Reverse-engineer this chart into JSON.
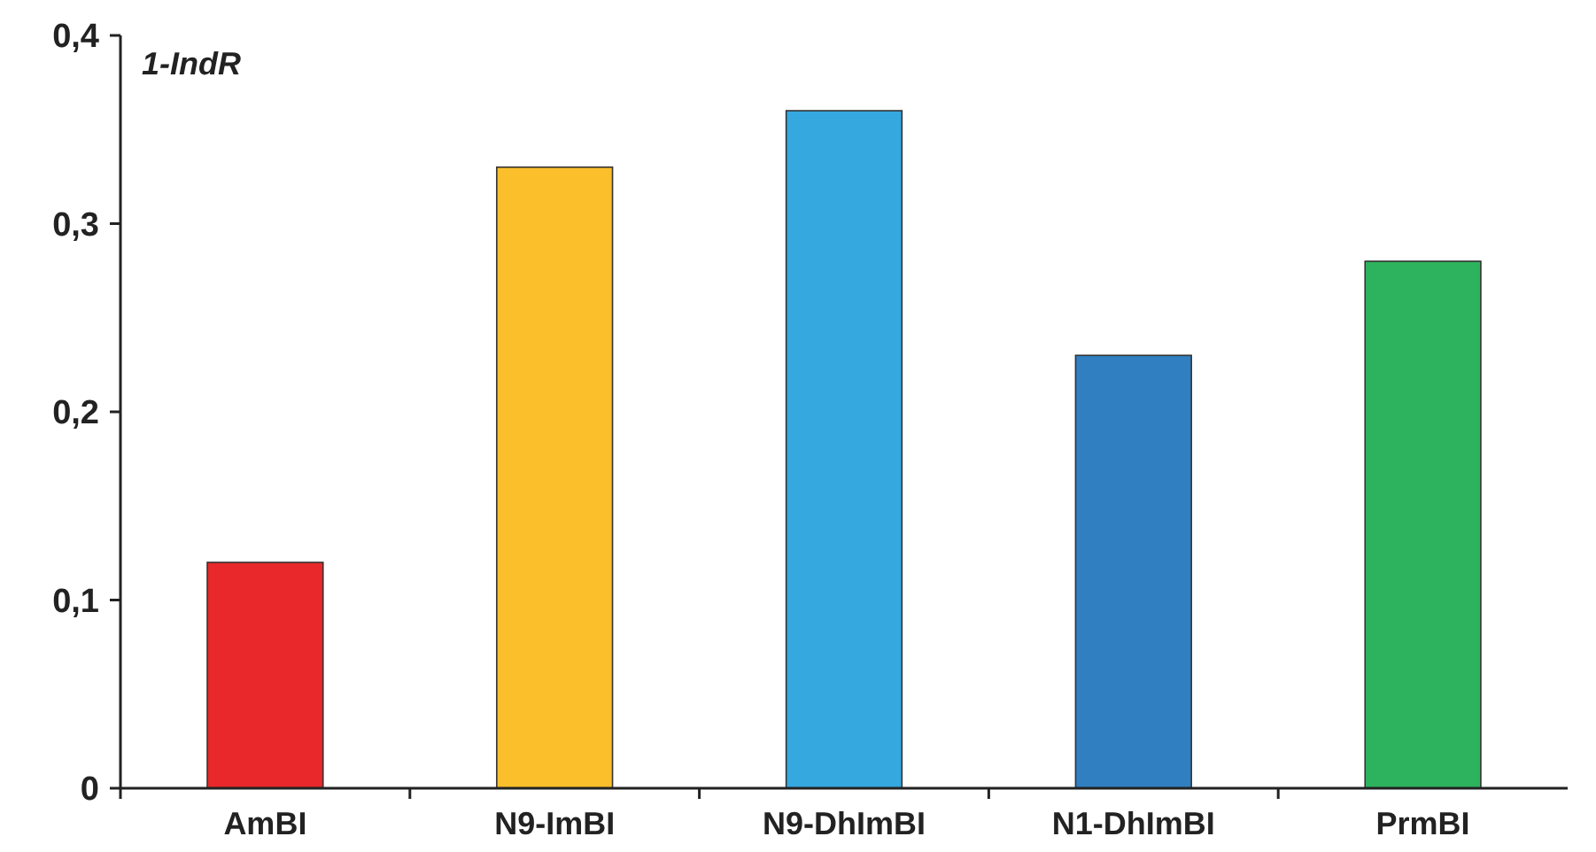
{
  "chart_data": {
    "type": "bar",
    "ylabel": "1-IndR",
    "categories": [
      "AmBI",
      "N9-ImBI",
      "N9-DhImBI",
      "N1-DhImBI",
      "PrmBI"
    ],
    "values": [
      0.12,
      0.33,
      0.36,
      0.23,
      0.28
    ],
    "colors": [
      "#e8282a",
      "#fbbf2b",
      "#35a8e0",
      "#2f7fc1",
      "#2db35d"
    ],
    "ylim": [
      0,
      0.4
    ],
    "yticks": [
      0,
      {
        "value": 0.1,
        "label": "0,1"
      },
      {
        "value": 0.2,
        "label": "0,2"
      },
      {
        "value": 0.3,
        "label": "0,3"
      },
      {
        "value": 0.4,
        "label": "0,4"
      }
    ],
    "grid": false
  }
}
